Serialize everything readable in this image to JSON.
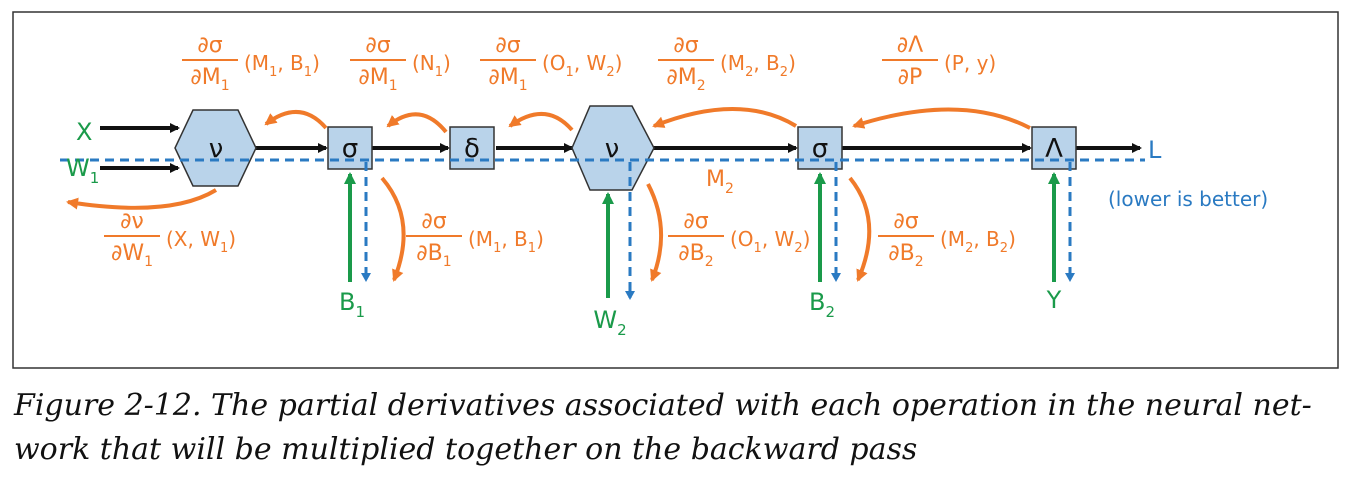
{
  "colors": {
    "orange": "#f07a2a",
    "green": "#1a9a4a",
    "blue": "#2a7ac2",
    "node_fill": "#b9d3ea",
    "black": "#111111"
  },
  "inputs": {
    "x": "X",
    "w1_main": "W",
    "w1_sub": "1"
  },
  "nodes": {
    "nu1": "ν",
    "sigma1": "σ",
    "delta": "δ",
    "nu2": "ν",
    "sigma2": "σ",
    "lambda": "Λ"
  },
  "outputs": {
    "l": "L",
    "lower_is_better": "(lower is better)",
    "m2_main": "M",
    "m2_sub": "2"
  },
  "params": {
    "b1_main": "B",
    "b1_sub": "1",
    "w2_main": "W",
    "w2_sub": "2",
    "b2_main": "B",
    "b2_sub": "2",
    "y": "Y"
  },
  "derivatives": {
    "top": [
      {
        "num": "∂σ",
        "den_main": "∂M",
        "den_sub": "1",
        "args": [
          "(M",
          "1",
          ", B",
          "1",
          ")"
        ]
      },
      {
        "num": "∂σ",
        "den_main": "∂M",
        "den_sub": "1",
        "args": [
          "(N",
          "1",
          ")",
          "",
          ""
        ]
      },
      {
        "num": "∂σ",
        "den_main": "∂M",
        "den_sub": "1",
        "args": [
          "(O",
          "1",
          ", W",
          "2",
          ")"
        ]
      },
      {
        "num": "∂σ",
        "den_main": "∂M",
        "den_sub": "2",
        "args": [
          "(M",
          "2",
          ", B",
          "2",
          ")"
        ]
      },
      {
        "num": "∂Λ",
        "den_main": "∂P",
        "den_sub": "",
        "args": [
          "(P, y)",
          "",
          "",
          "",
          ""
        ]
      }
    ],
    "bottom": [
      {
        "num": "∂ν",
        "den_main": "∂W",
        "den_sub": "1",
        "args": [
          "(X, W",
          "1",
          ")",
          "",
          ""
        ]
      },
      {
        "num": "∂σ",
        "den_main": "∂B",
        "den_sub": "1",
        "args": [
          "(M",
          "1",
          ", B",
          "1",
          ")"
        ]
      },
      {
        "num": "∂σ",
        "den_main": "∂B",
        "den_sub": "2",
        "args": [
          "(O",
          "1",
          ", W",
          "2",
          ")"
        ]
      },
      {
        "num": "∂σ",
        "den_main": "∂B",
        "den_sub": "2",
        "args": [
          "(M",
          "2",
          ", B",
          "2",
          ")"
        ]
      }
    ]
  },
  "caption": {
    "line1": "Figure 2-12. The partial derivatives associated with each operation in the neural net-",
    "line2": "work that will be multiplied together on the backward pass"
  }
}
